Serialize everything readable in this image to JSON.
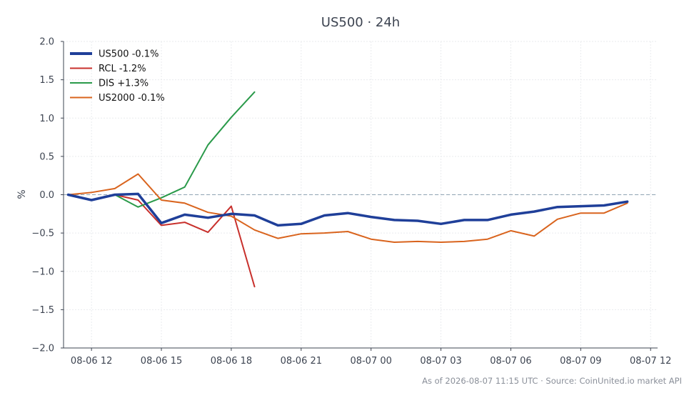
{
  "chart_data": {
    "type": "line",
    "title": "US500 · 24h",
    "ylabel": "%",
    "xlabel": "",
    "ylim": [
      -2.0,
      2.0
    ],
    "yticks": [
      2.0,
      1.5,
      1.0,
      0.5,
      0.0,
      -0.5,
      -1.0,
      -1.5,
      -2.0
    ],
    "ytick_labels": [
      "2.0",
      "1.5",
      "1.0",
      "0.5",
      "0.0",
      "−0.5",
      "−1.0",
      "−1.5",
      "−2.0"
    ],
    "xlim": [
      "08-06 10:48",
      "08-07 12:18"
    ],
    "xticks": [
      "08-06 12:00",
      "08-06 15:00",
      "08-06 18:00",
      "08-06 21:00",
      "08-07 00:00",
      "08-07 03:00",
      "08-07 06:00",
      "08-07 09:00",
      "08-07 12:00"
    ],
    "xtick_labels": [
      "08-06 12",
      "08-06 15",
      "08-06 18",
      "08-06 21",
      "08-07 00",
      "08-07 03",
      "08-07 06",
      "08-07 09",
      "08-07 12"
    ],
    "grid": true,
    "zero_line": true,
    "legend_position": "top-left",
    "series": [
      {
        "name": "US500 -0.1%",
        "color": "#1f3f99",
        "emphasis": true,
        "x": [
          "08-06 11:00",
          "08-06 12:00",
          "08-06 13:00",
          "08-06 14:00",
          "08-06 15:00",
          "08-06 16:00",
          "08-06 17:00",
          "08-06 18:00",
          "08-06 19:00",
          "08-06 20:00",
          "08-06 21:00",
          "08-06 22:00",
          "08-06 23:00",
          "08-07 00:00",
          "08-07 01:00",
          "08-07 02:00",
          "08-07 03:00",
          "08-07 04:00",
          "08-07 05:00",
          "08-07 06:00",
          "08-07 07:00",
          "08-07 08:00",
          "08-07 09:00",
          "08-07 10:00",
          "08-07 11:00"
        ],
        "y": [
          0.0,
          -0.07,
          0.0,
          0.01,
          -0.37,
          -0.26,
          -0.3,
          -0.25,
          -0.27,
          -0.4,
          -0.38,
          -0.27,
          -0.24,
          -0.29,
          -0.33,
          -0.34,
          -0.38,
          -0.33,
          -0.33,
          -0.26,
          -0.22,
          -0.16,
          -0.15,
          -0.14,
          -0.09
        ]
      },
      {
        "name": "RCL -1.2%",
        "color": "#c8302c",
        "emphasis": false,
        "x": [
          "08-06 11:00",
          "08-06 12:00",
          "08-06 13:00",
          "08-06 14:00",
          "08-06 15:00",
          "08-06 16:00",
          "08-06 17:00",
          "08-06 18:00",
          "08-06 19:00"
        ],
        "y": [
          0.0,
          -0.07,
          0.0,
          -0.07,
          -0.4,
          -0.36,
          -0.49,
          -0.15,
          -1.2
        ]
      },
      {
        "name": "DIS +1.3%",
        "color": "#2a9a4a",
        "emphasis": false,
        "x": [
          "08-06 11:00",
          "08-06 12:00",
          "08-06 13:00",
          "08-06 14:00",
          "08-06 15:00",
          "08-06 16:00",
          "08-06 17:00",
          "08-06 18:00",
          "08-06 19:00"
        ],
        "y": [
          0.0,
          -0.07,
          0.0,
          -0.16,
          -0.04,
          0.1,
          0.65,
          1.01,
          1.34
        ]
      },
      {
        "name": "US2000 -0.1%",
        "color": "#d9641e",
        "emphasis": false,
        "x": [
          "08-06 11:00",
          "08-06 12:00",
          "08-06 13:00",
          "08-06 14:00",
          "08-06 15:00",
          "08-06 16:00",
          "08-06 17:00",
          "08-06 18:00",
          "08-06 19:00",
          "08-06 20:00",
          "08-06 21:00",
          "08-06 22:00",
          "08-06 23:00",
          "08-07 00:00",
          "08-07 01:00",
          "08-07 02:00",
          "08-07 03:00",
          "08-07 04:00",
          "08-07 05:00",
          "08-07 06:00",
          "08-07 07:00",
          "08-07 08:00",
          "08-07 09:00",
          "08-07 10:00",
          "08-07 11:00"
        ],
        "y": [
          0.0,
          0.03,
          0.08,
          0.27,
          -0.07,
          -0.11,
          -0.23,
          -0.28,
          -0.46,
          -0.57,
          -0.51,
          -0.5,
          -0.48,
          -0.58,
          -0.62,
          -0.61,
          -0.62,
          -0.61,
          -0.58,
          -0.47,
          -0.54,
          -0.32,
          -0.24,
          -0.24,
          -0.11
        ]
      }
    ],
    "footer": "As of 2026-08-07 11:15 UTC · Source: CoinUnited.io market API"
  }
}
